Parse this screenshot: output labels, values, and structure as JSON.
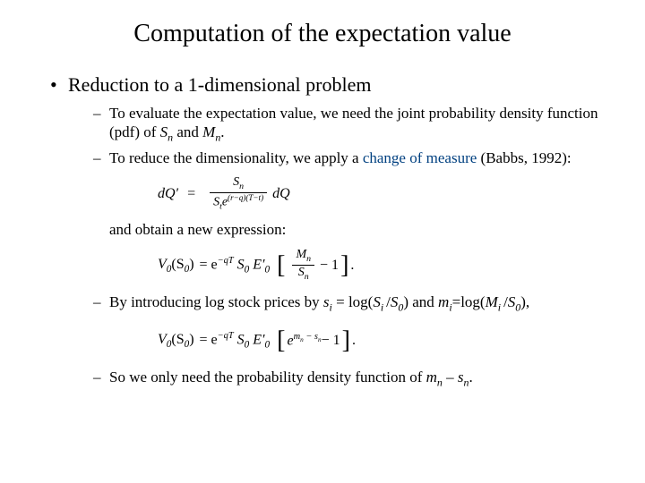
{
  "title": "Computation of the expectation value",
  "bullet1": "Reduction to a 1-dimensional problem",
  "sub1_a": "To evaluate the expectation value, we need the joint probability density function (pdf) of ",
  "sub1_Sn": "S",
  "sub1_n1": "n",
  "sub1_and": " and ",
  "sub1_Mn": "M",
  "sub1_n2": "n",
  "sub1_dot": ".",
  "sub2_a": "To reduce the dimensionality, we apply a ",
  "sub2_hl": "change of measure",
  "sub2_b": " (Babbs, 1992):",
  "eq1_lhs": "dQ′",
  "eq1_num": "S",
  "eq1_num_sub": "n",
  "eq1_den_a": "S",
  "eq1_den_sub": "t",
  "eq1_den_b": "e",
  "eq1_den_exp": "(r−q)(T−t)",
  "eq1_rhs": " dQ",
  "inter1": "and obtain a new expression:",
  "eq2_V": "V",
  "eq2_0a": "0",
  "eq2_S": "(S",
  "eq2_0b": "0",
  "eq2_close": ")",
  "eq2_eq": " = e",
  "eq2_exp1": "−qT",
  "eq2_S0": " S",
  "eq2_S0sub": "0",
  "eq2_E": " E′",
  "eq2_Esub": "0",
  "eq2_frac_num": "M",
  "eq2_frac_num_sub": "n",
  "eq2_frac_den": "S",
  "eq2_frac_den_sub": "n",
  "eq2_minus1": " − 1",
  "eq2_dot": " .",
  "sub3_a": "By introducing log stock prices by ",
  "sub3_si": "s",
  "sub3_i1": "i",
  "sub3_eq1": " = log(",
  "sub3_Si": "S",
  "sub3_i2": "i ",
  "sub3_slash1": "/",
  "sub3_S0a": "S",
  "sub3_01": "0",
  "sub3_close1": ") and ",
  "sub3_mi": "m",
  "sub3_i3": "i",
  "sub3_eq2": "=log(",
  "sub3_Mi": "M",
  "sub3_i4": "i ",
  "sub3_slash2": "/",
  "sub3_S0b": "S",
  "sub3_02": "0",
  "sub3_close2": "),",
  "eq3_exp2": "m",
  "eq3_exp2sub": "n",
  "eq3_minus": " − s",
  "eq3_minus_sub": "n",
  "eq3_minus1": " − 1",
  "sub4_a": "So we only need the probability density function of ",
  "sub4_mn": "m",
  "sub4_n1": "n",
  "sub4_minus": " – ",
  "sub4_sn": "s",
  "sub4_n2": "n",
  "sub4_dot": "."
}
